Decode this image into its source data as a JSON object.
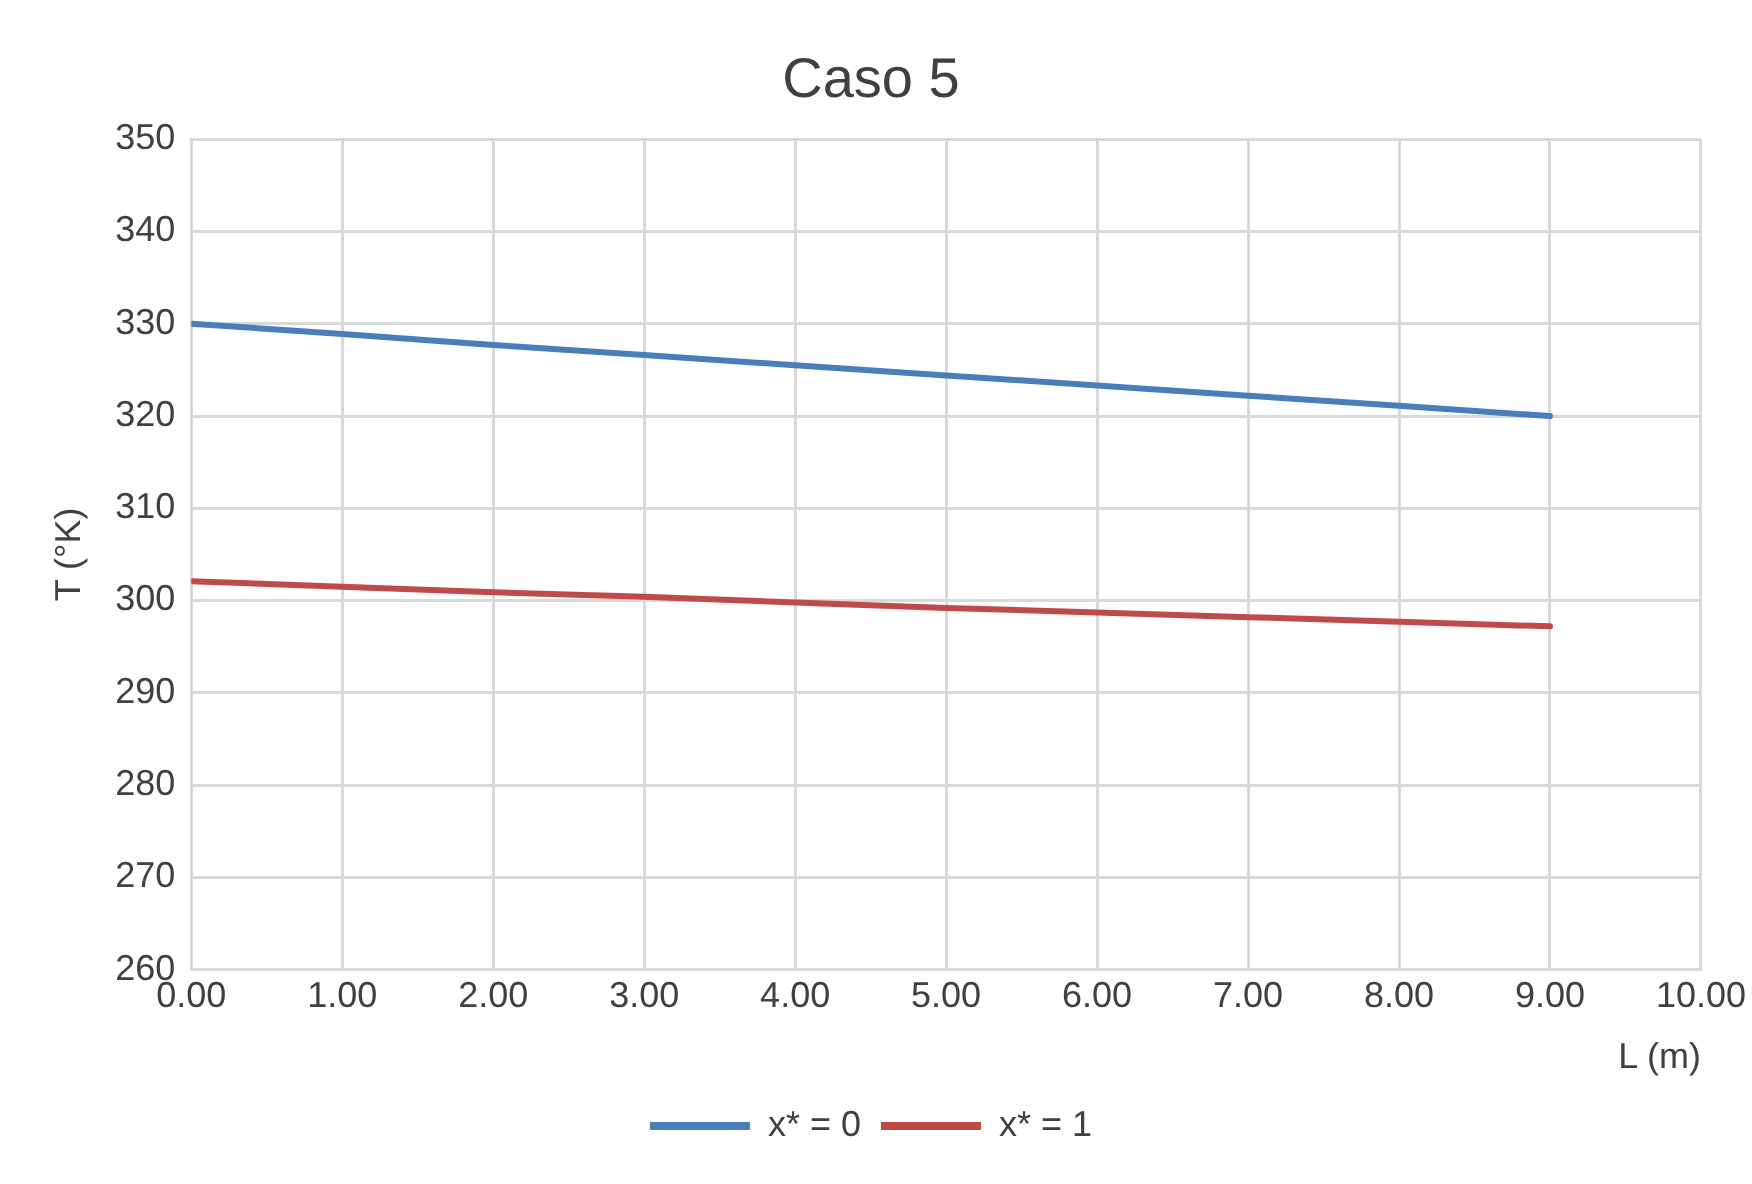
{
  "chart_data": {
    "type": "line",
    "title": "Caso 5",
    "xlabel": "L (m)",
    "ylabel": "T (°K)",
    "x": [
      0,
      1,
      2,
      3,
      4,
      5,
      6,
      7,
      8,
      9
    ],
    "series": [
      {
        "name": "x* = 0",
        "color": "#4a7ebb",
        "values": [
          330,
          328.9,
          327.7,
          326.6,
          325.5,
          324.4,
          323.3,
          322.2,
          321.1,
          320
        ]
      },
      {
        "name": "x* = 1",
        "color": "#be4b48",
        "values": [
          302.1,
          301.5,
          300.9,
          300.4,
          299.8,
          299.2,
          298.7,
          298.2,
          297.7,
          297.2
        ]
      }
    ],
    "xlim": [
      0,
      10
    ],
    "xticks": [
      {
        "value": 0,
        "label": "0.00"
      },
      {
        "value": 1,
        "label": "1.00"
      },
      {
        "value": 2,
        "label": "2.00"
      },
      {
        "value": 3,
        "label": "3.00"
      },
      {
        "value": 4,
        "label": "4.00"
      },
      {
        "value": 5,
        "label": "5.00"
      },
      {
        "value": 6,
        "label": "6.00"
      },
      {
        "value": 7,
        "label": "7.00"
      },
      {
        "value": 8,
        "label": "8.00"
      },
      {
        "value": 9,
        "label": "9.00"
      },
      {
        "value": 10,
        "label": "10.00"
      }
    ],
    "ylim": [
      260,
      350
    ],
    "yticks": [
      260,
      270,
      280,
      290,
      300,
      310,
      320,
      330,
      340,
      350
    ],
    "grid": true,
    "legend": "bottom",
    "marker": "none",
    "line_style": "solid"
  }
}
